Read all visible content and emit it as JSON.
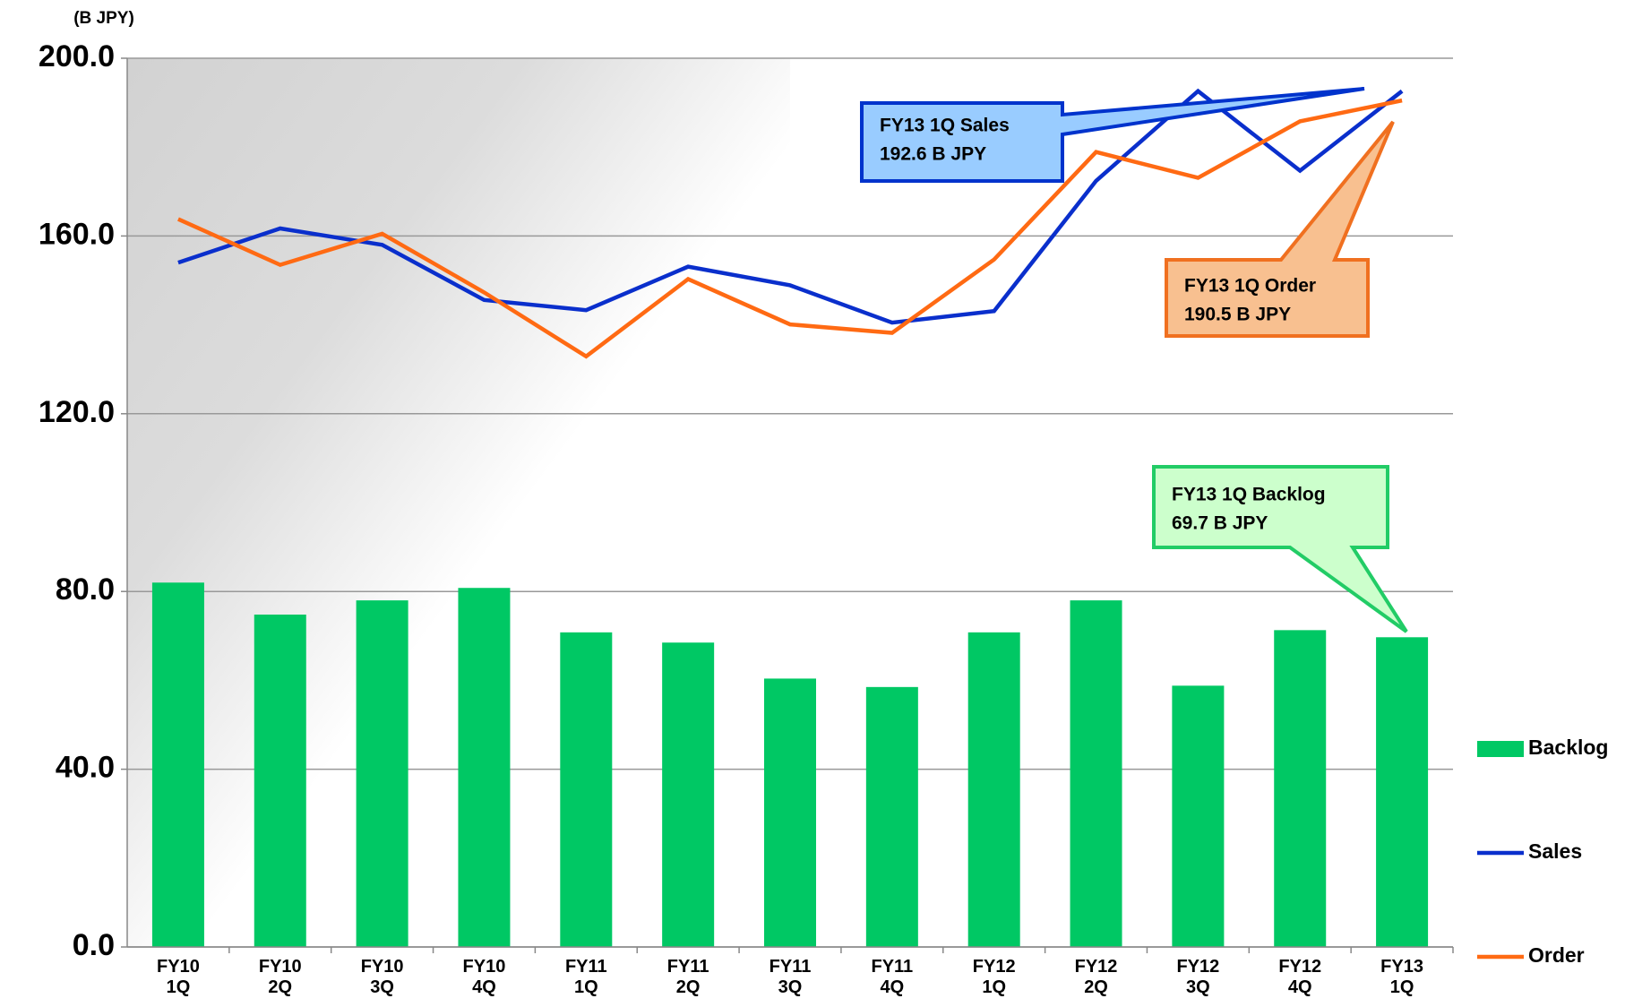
{
  "chart_data": {
    "type": "bar-line",
    "y_axis_label": "(B JPY)",
    "categories": [
      "FY10\n1Q",
      "FY10\n2Q",
      "FY10\n3Q",
      "FY10\n4Q",
      "FY11\n1Q",
      "FY11\n2Q",
      "FY11\n3Q",
      "FY11\n4Q",
      "FY12\n1Q",
      "FY12\n2Q",
      "FY12\n3Q",
      "FY12\n4Q",
      "FY13\n1Q"
    ],
    "series": [
      {
        "name": "Backlog",
        "type": "bar",
        "color": "#00c864",
        "values": [
          82.0,
          74.8,
          78.0,
          80.8,
          70.8,
          68.5,
          60.4,
          58.5,
          70.8,
          78.0,
          58.8,
          71.3,
          69.7
        ]
      },
      {
        "name": "Sales",
        "type": "line",
        "color": "#0a2fcc",
        "values": [
          154.0,
          161.7,
          158.0,
          145.6,
          143.3,
          153.1,
          148.9,
          140.5,
          143.1,
          172.4,
          192.6,
          174.7,
          192.6
        ]
      },
      {
        "name": "Order",
        "type": "line",
        "color": "#ff6a13",
        "values": [
          163.8,
          153.5,
          160.5,
          147.3,
          132.9,
          150.3,
          140.1,
          138.2,
          154.7,
          178.9,
          173.1,
          185.8,
          190.5
        ]
      }
    ],
    "ylim": [
      0,
      200
    ],
    "yticks": [
      {
        "value": 0,
        "label": "0.0"
      },
      {
        "value": 40,
        "label": "40.0"
      },
      {
        "value": 80,
        "label": "80.0"
      },
      {
        "value": 120,
        "label": "120.0"
      },
      {
        "value": 160,
        "label": "160.0"
      },
      {
        "value": 200,
        "label": "200.0"
      }
    ],
    "grid": true,
    "legend": "right",
    "annotations": [
      {
        "lines": [
          "FY13 1Q Sales",
          "192.6 B JPY"
        ]
      },
      {
        "lines": [
          "FY13 1Q Order",
          "190.5 B JPY"
        ]
      },
      {
        "lines": [
          "FY13 1Q Backlog",
          "69.7 B JPY"
        ]
      }
    ]
  }
}
